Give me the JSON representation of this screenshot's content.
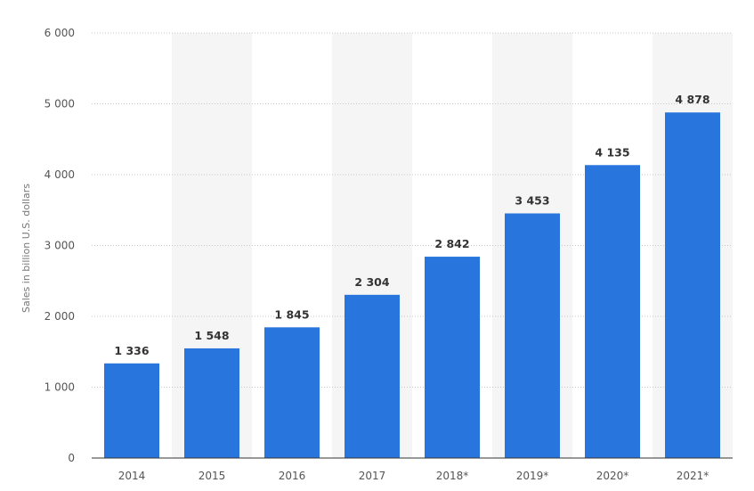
{
  "chart_data": {
    "type": "bar",
    "ylabel": "Sales in billion U.S. dollars",
    "categories": [
      "2014",
      "2015",
      "2016",
      "2017",
      "2018*",
      "2019*",
      "2020*",
      "2021*"
    ],
    "values": [
      1336,
      1548,
      1845,
      2304,
      2842,
      3453,
      4135,
      4878
    ],
    "value_labels": [
      "1 336",
      "1 548",
      "1 845",
      "2 304",
      "2 842",
      "3 453",
      "4 135",
      "4 878"
    ],
    "yticks": [
      0,
      1000,
      2000,
      3000,
      4000,
      5000,
      6000
    ],
    "ytick_labels": [
      "0",
      "1 000",
      "2 000",
      "3 000",
      "4 000",
      "5 000",
      "6 000"
    ],
    "ylim": [
      0,
      6000
    ],
    "grid": true,
    "legend": false,
    "colors": {
      "bar": "#2876dd",
      "band": "#f5f5f5"
    }
  }
}
